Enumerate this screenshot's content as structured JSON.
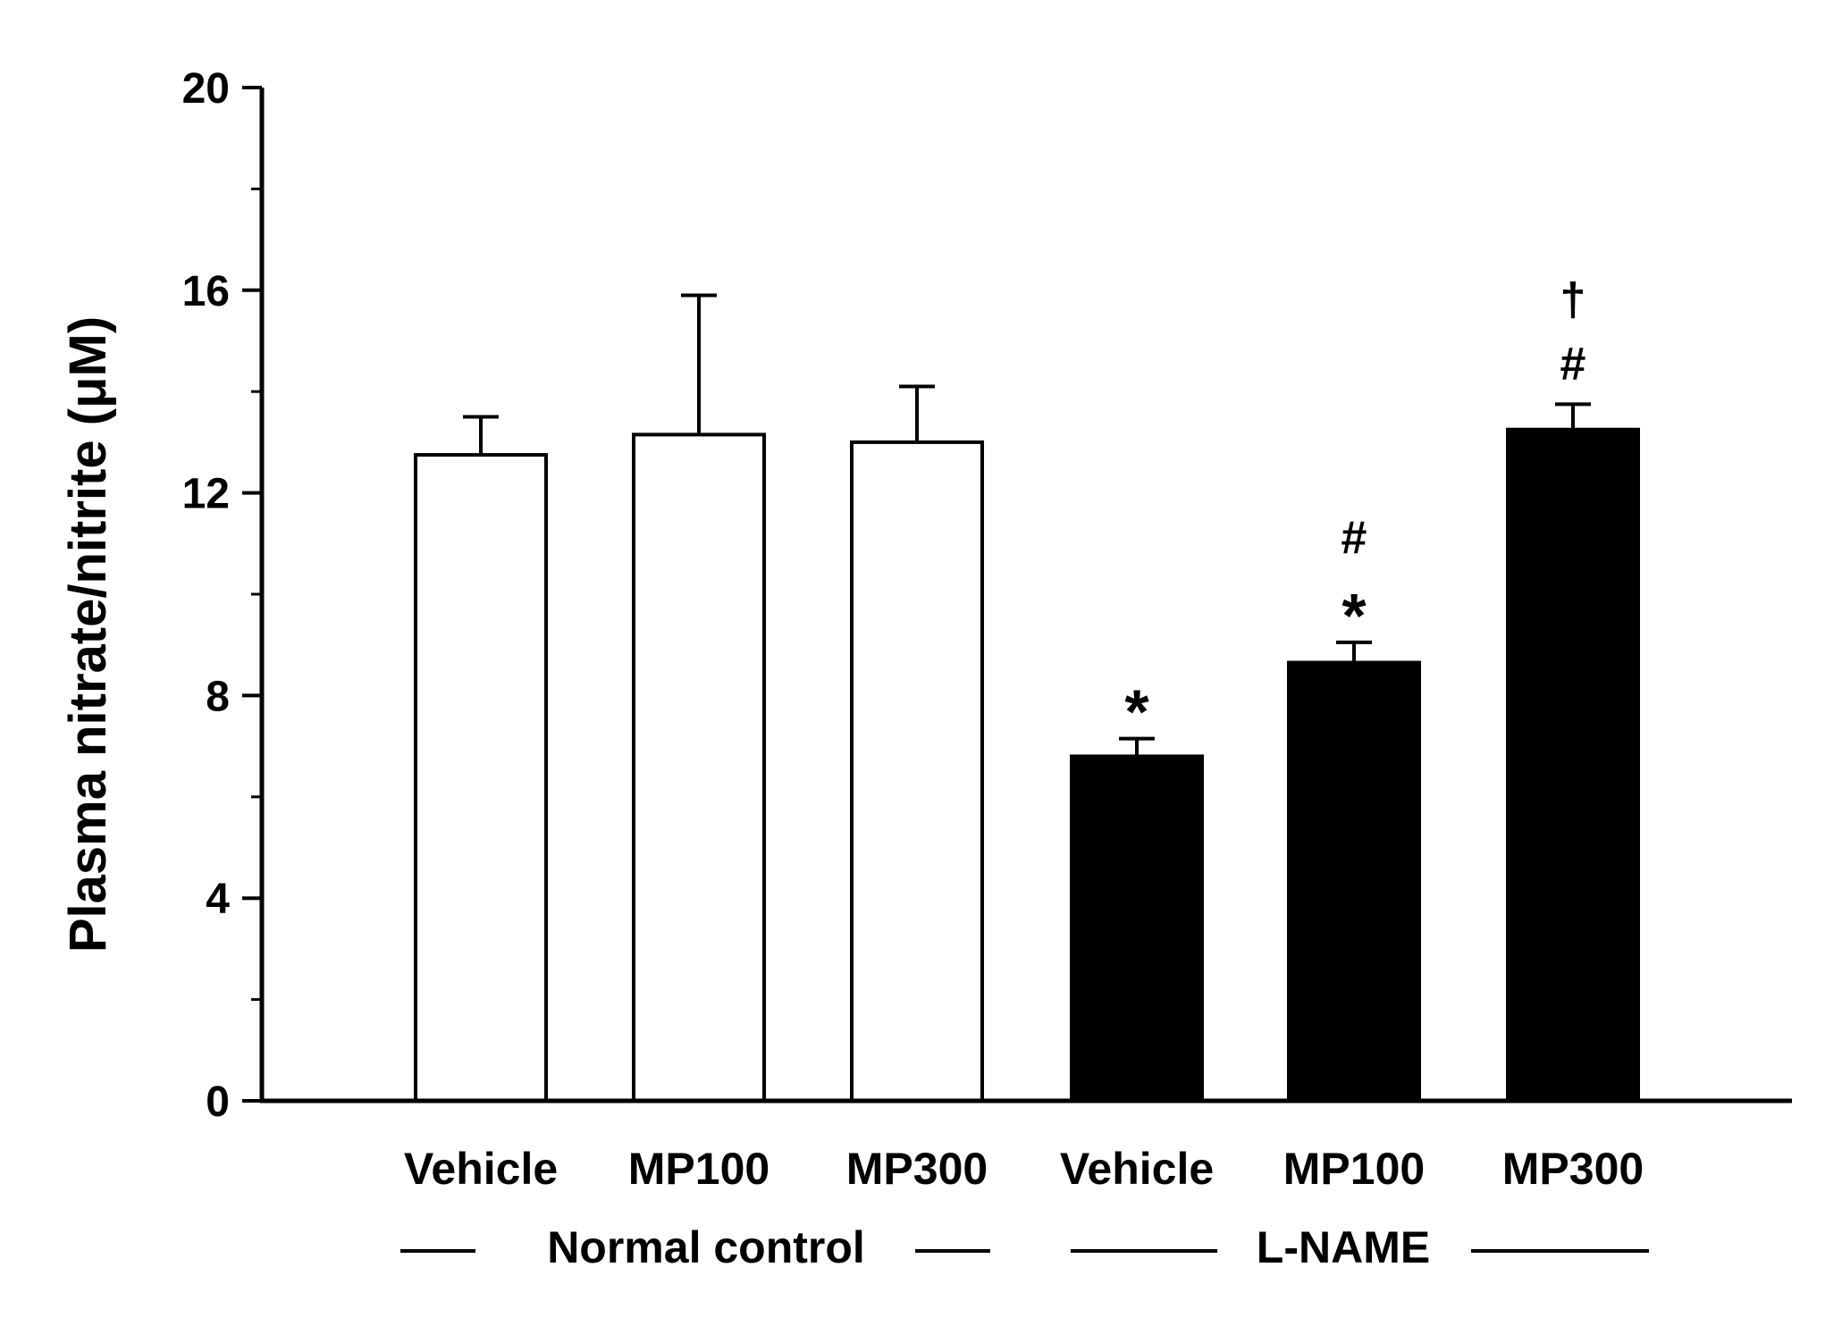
{
  "chart_data": {
    "type": "bar",
    "title": "",
    "xlabel": "",
    "ylabel": "Plasma nitrate/nitrite (μM)",
    "ylim": [
      0,
      20
    ],
    "yticks": [
      0,
      4,
      8,
      12,
      16,
      20
    ],
    "yminor_ticks": [
      2,
      6,
      10,
      14,
      18
    ],
    "categories": [
      "Vehicle",
      "MP100",
      "MP300",
      "Vehicle",
      "MP100",
      "MP300"
    ],
    "values": [
      12.75,
      13.15,
      13.0,
      6.8,
      8.65,
      13.25
    ],
    "errors": [
      0.75,
      2.75,
      1.1,
      0.35,
      0.4,
      0.5
    ],
    "fills": [
      "#ffffff",
      "#ffffff",
      "#ffffff",
      "#000000",
      "#000000",
      "#000000"
    ],
    "annotations": [
      [],
      [],
      [],
      [
        "*"
      ],
      [
        "*",
        "#"
      ],
      [
        "#",
        "†"
      ]
    ],
    "groups": [
      {
        "label": "Normal control",
        "bars": [
          0,
          1,
          2
        ]
      },
      {
        "label": "L-NAME",
        "bars": [
          3,
          4,
          5
        ]
      }
    ]
  }
}
